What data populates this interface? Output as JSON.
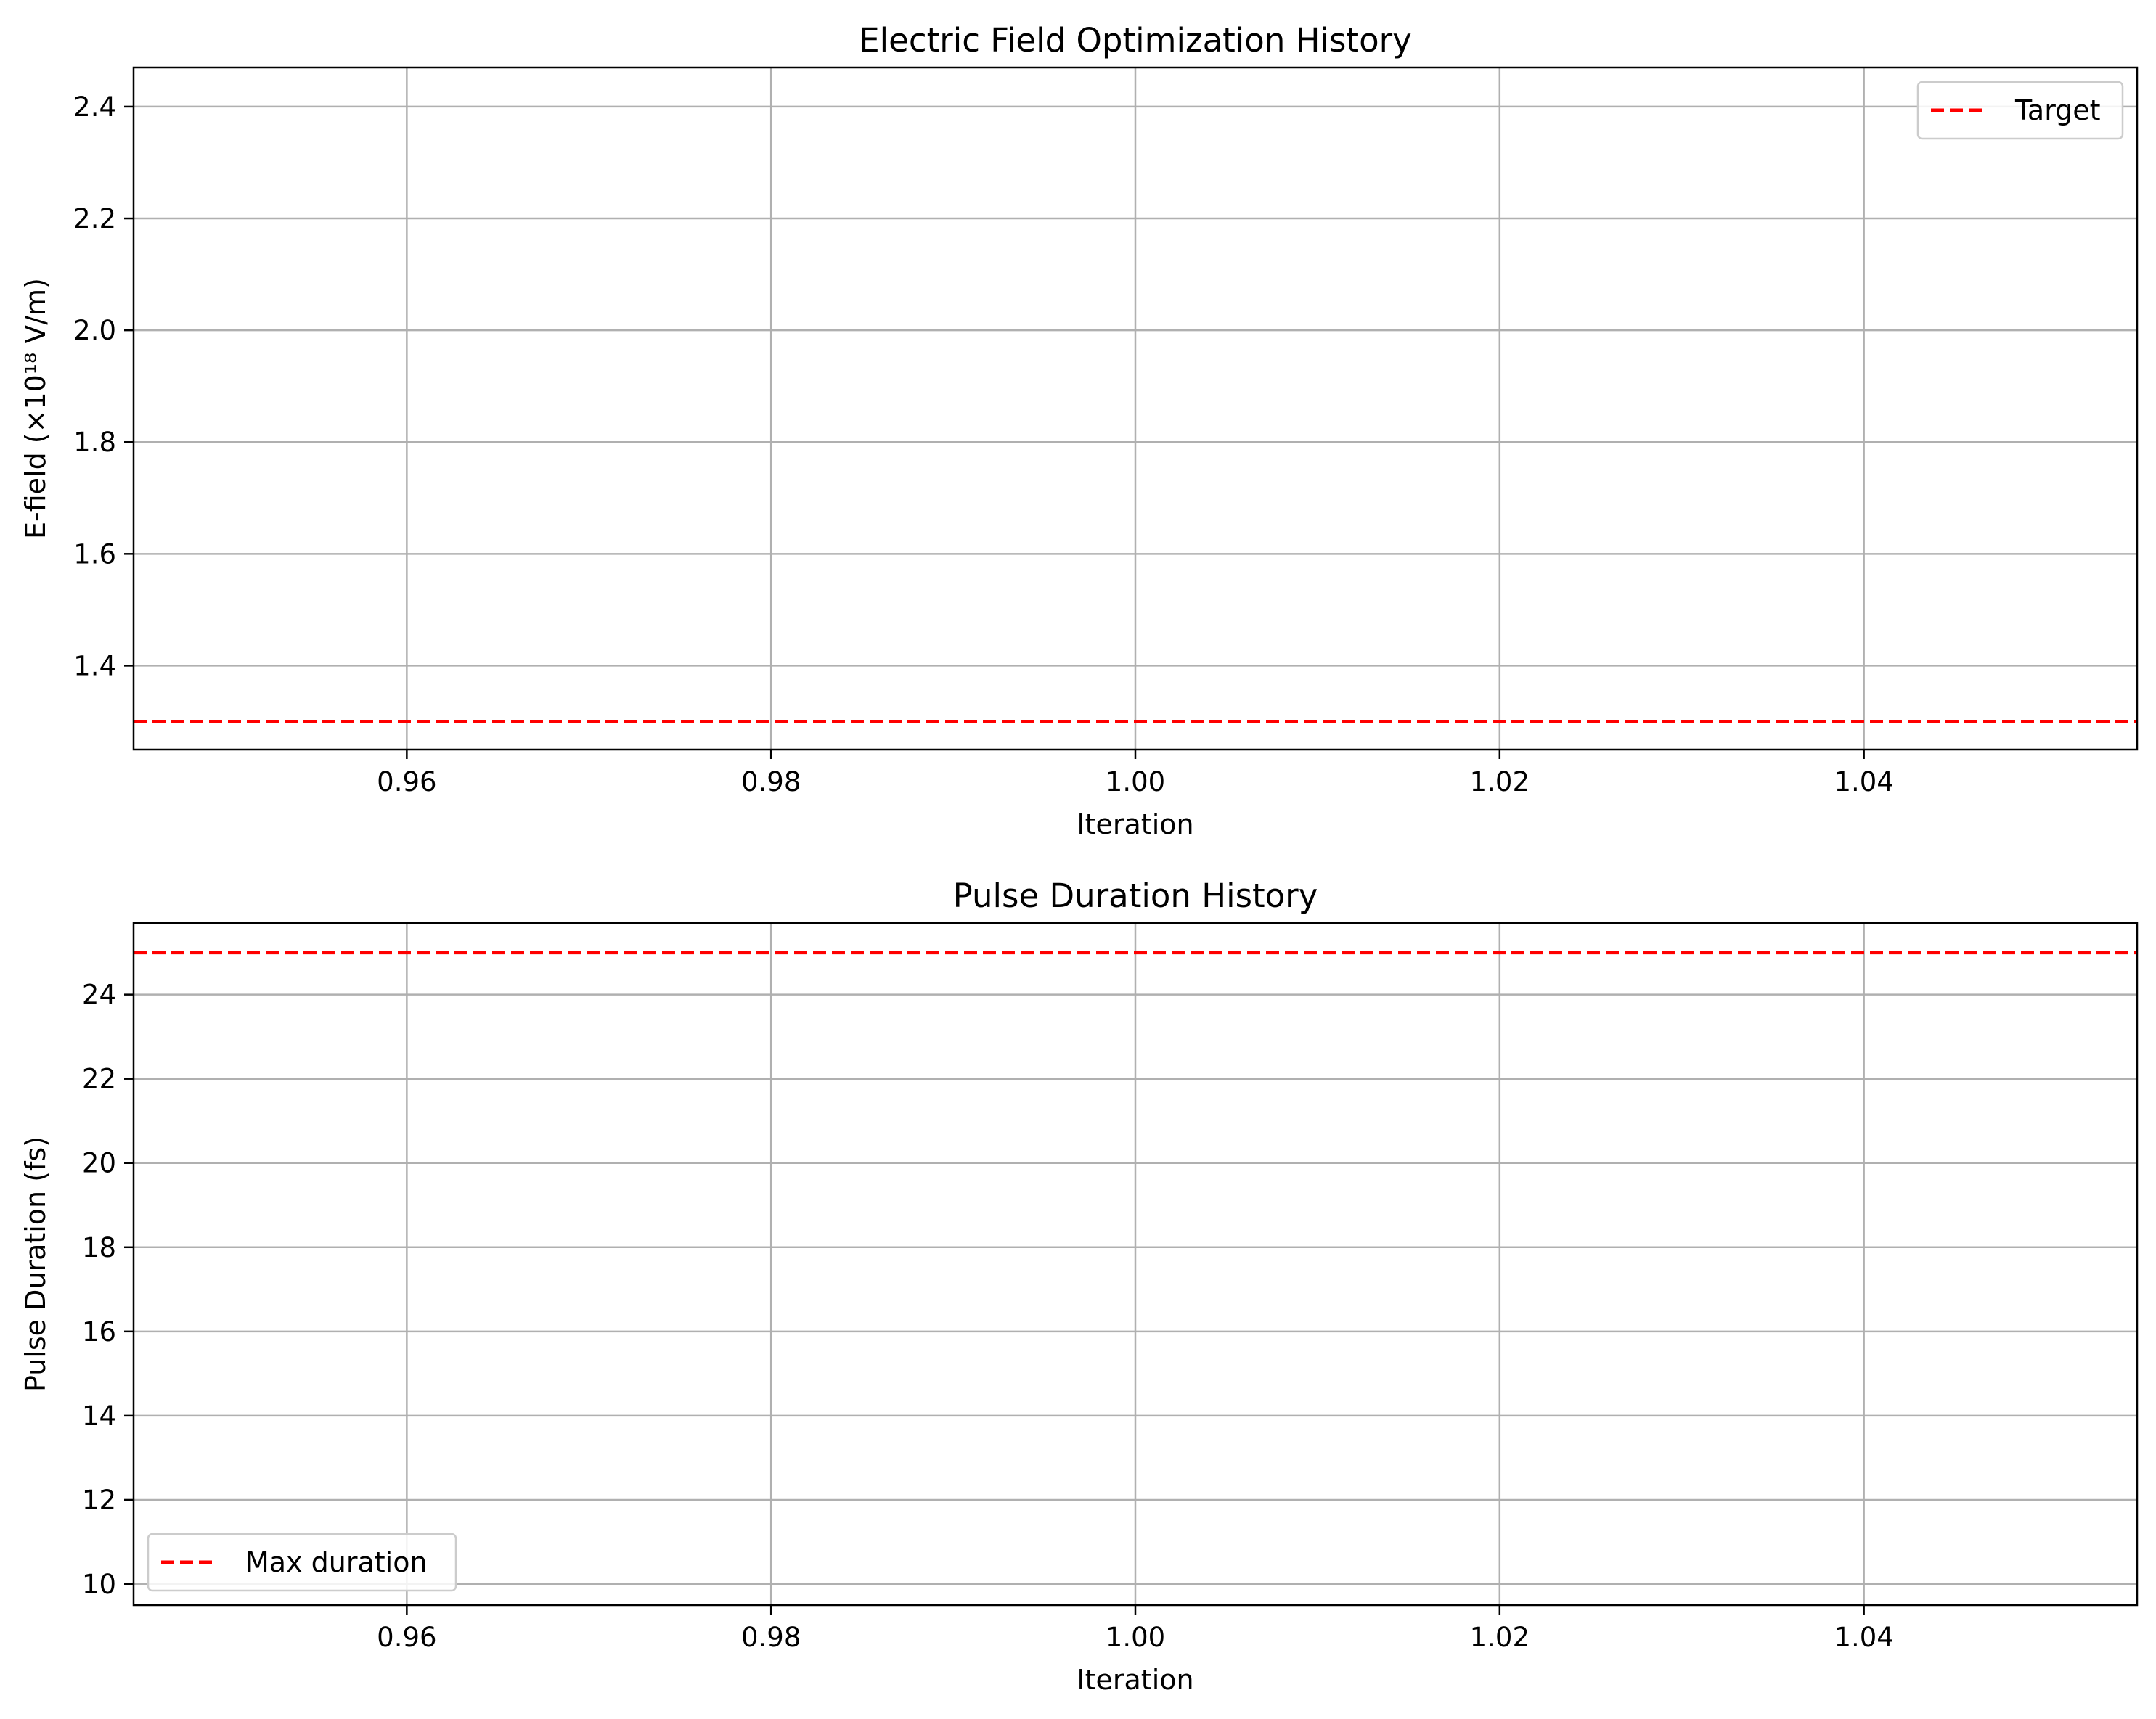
{
  "chart_data": [
    {
      "type": "line",
      "title": "Electric Field Optimization History",
      "xlabel": "Iteration",
      "ylabel": "E-field (×10¹⁸ V/m)",
      "xlim": [
        0.945,
        1.055
      ],
      "ylim": [
        1.25,
        2.47
      ],
      "xticks": [
        0.96,
        0.98,
        1.0,
        1.02,
        1.04
      ],
      "xtick_labels": [
        "0.96",
        "0.98",
        "1.00",
        "1.02",
        "1.04"
      ],
      "yticks": [
        1.4,
        1.6,
        1.8,
        2.0,
        2.2,
        2.4
      ],
      "ytick_labels": [
        "1.4",
        "1.6",
        "1.8",
        "2.0",
        "2.2",
        "2.4"
      ],
      "grid": true,
      "legend_position": "upper-right",
      "series": [],
      "reference_lines": [
        {
          "name": "Target",
          "orientation": "horizontal",
          "y": 1.3,
          "style": "dashed",
          "color": "#ff0000"
        }
      ]
    },
    {
      "type": "line",
      "title": "Pulse Duration History",
      "xlabel": "Iteration",
      "ylabel": "Pulse Duration (fs)",
      "xlim": [
        0.945,
        1.055
      ],
      "ylim": [
        9.5,
        25.7
      ],
      "xticks": [
        0.96,
        0.98,
        1.0,
        1.02,
        1.04
      ],
      "xtick_labels": [
        "0.96",
        "0.98",
        "1.00",
        "1.02",
        "1.04"
      ],
      "yticks": [
        10,
        12,
        14,
        16,
        18,
        20,
        22,
        24
      ],
      "ytick_labels": [
        "10",
        "12",
        "14",
        "16",
        "18",
        "20",
        "22",
        "24"
      ],
      "grid": true,
      "legend_position": "lower-left",
      "series": [],
      "reference_lines": [
        {
          "name": "Max duration",
          "orientation": "horizontal",
          "y": 25,
          "style": "dashed",
          "color": "#ff0000"
        }
      ]
    }
  ]
}
